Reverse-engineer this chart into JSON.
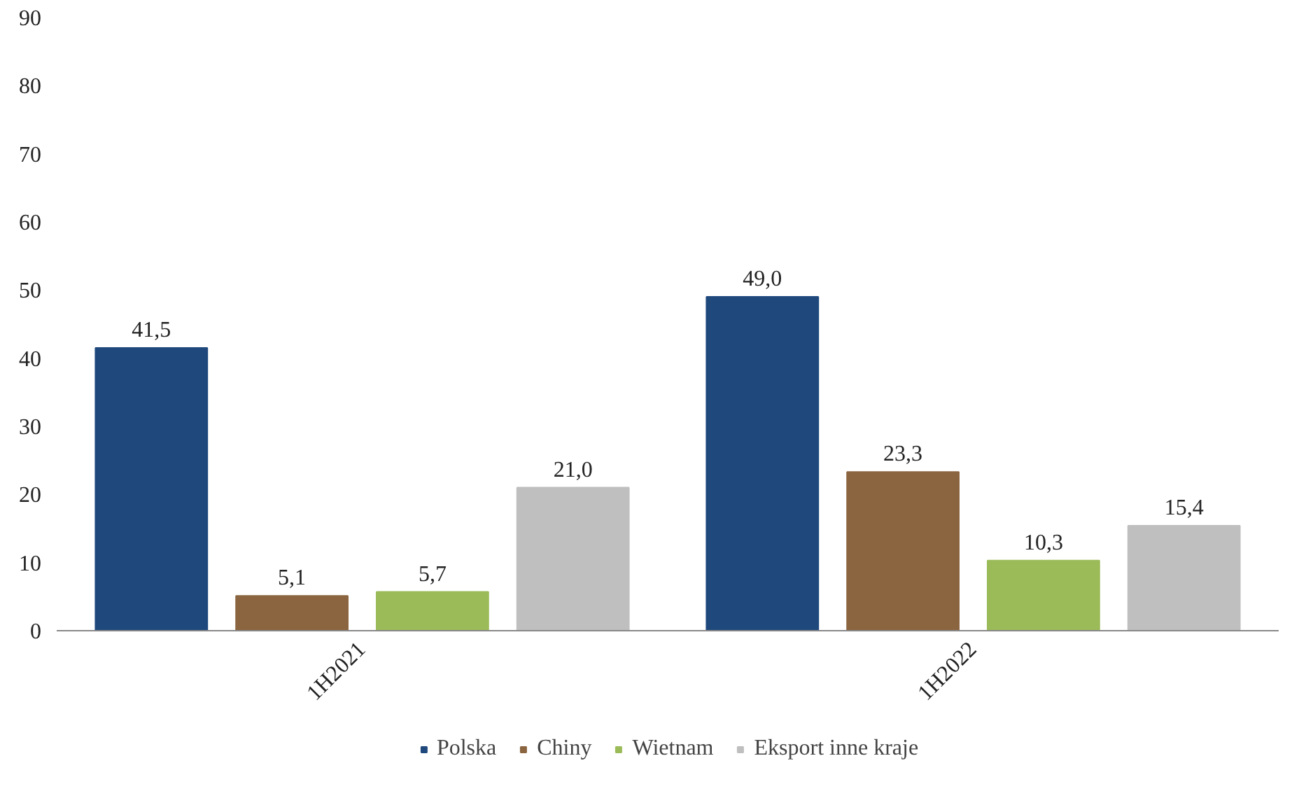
{
  "chart_data": {
    "type": "bar",
    "categories": [
      "1H2021",
      "1H2022"
    ],
    "series": [
      {
        "name": "Polska",
        "color": "#1f497d",
        "values": [
          41.5,
          49.0
        ],
        "value_labels": [
          "41,5",
          "49,0"
        ]
      },
      {
        "name": "Chiny",
        "color": "#8b6540",
        "values": [
          5.1,
          23.3
        ],
        "value_labels": [
          "5,1",
          "23,3"
        ]
      },
      {
        "name": "Wietnam",
        "color": "#9bbb59",
        "values": [
          5.7,
          10.3
        ],
        "value_labels": [
          "5,7",
          "10,3"
        ]
      },
      {
        "name": "Eksport inne kraje",
        "color": "#bfbfbf",
        "values": [
          21.0,
          15.4
        ],
        "value_labels": [
          "21,0",
          "15,4"
        ]
      }
    ],
    "ylim": [
      0,
      90
    ],
    "yticks": [
      0,
      10,
      20,
      30,
      40,
      50,
      60,
      70,
      80,
      90
    ],
    "grid": false,
    "legend": "bottom"
  }
}
